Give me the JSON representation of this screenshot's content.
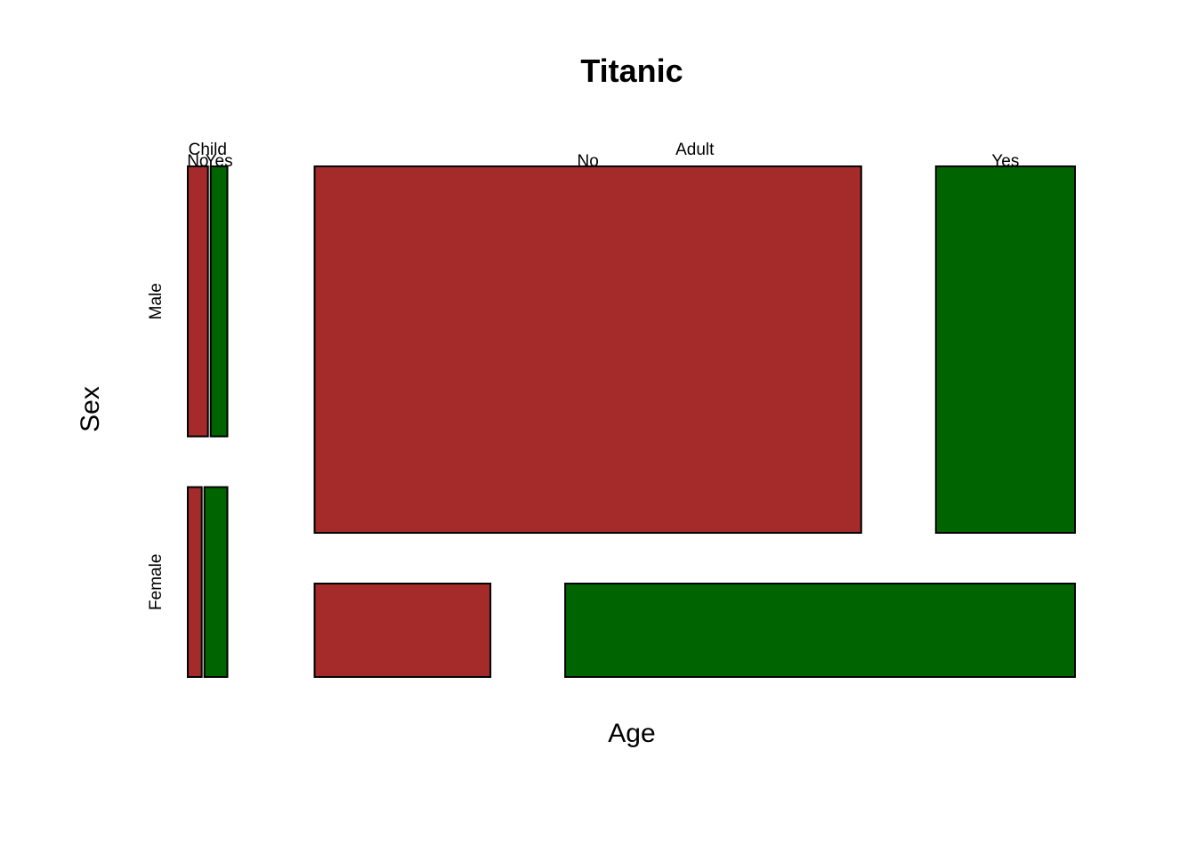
{
  "chart_data": {
    "type": "mosaic",
    "title": "Titanic",
    "xlabel": "Age",
    "ylabel": "Sex",
    "x_variable": "Age",
    "y_variable": "Sex",
    "fill_variable": "Survived",
    "age_levels": [
      "Child",
      "Adult"
    ],
    "sex_levels": [
      "Male",
      "Female"
    ],
    "survived_levels": [
      "No",
      "Yes"
    ],
    "colors": {
      "No": "#a52a2a",
      "Yes": "#006400"
    },
    "counts": {
      "Child": {
        "Male": {
          "No": 35,
          "Yes": 29
        },
        "Female": {
          "No": 17,
          "Yes": 28
        }
      },
      "Adult": {
        "Male": {
          "No": 1329,
          "Yes": 338
        },
        "Female": {
          "No": 109,
          "Yes": 316
        }
      }
    },
    "legend": "none",
    "grid": false
  }
}
